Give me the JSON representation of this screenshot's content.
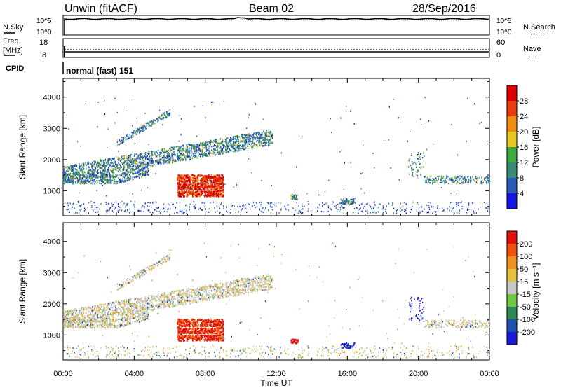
{
  "header": {
    "station": "Unwin (fitACF)",
    "beam": "Beam 02",
    "date": "28/Sep/2016"
  },
  "nsky_panel": {
    "left_label": "N.Sky",
    "left_ticks": [
      "10^5",
      "10^0"
    ],
    "right_ticks": [
      "10^5",
      "10^0"
    ],
    "right_label": "N.Search",
    "right_dots": "........"
  },
  "freq_panel": {
    "left_label_1": "Freq.",
    "left_label_2": "[MHz]",
    "left_ticks": [
      "18",
      "8"
    ],
    "right_ticks": [
      "60",
      "0"
    ],
    "right_label": "Nave",
    "right_dots": "...."
  },
  "cpid": {
    "label": "CPID",
    "value": "normal (fast) 151"
  },
  "x_axis": {
    "ticks": [
      "00:00",
      "04:00",
      "08:00",
      "12:00",
      "16:00",
      "20:00",
      "00:00"
    ],
    "label": "Time UT"
  },
  "chart_data": [
    {
      "type": "heatmap",
      "panel": "power",
      "ylabel": "Slant Range [km]",
      "y_ticks": [
        1000,
        2000,
        3000,
        4000
      ],
      "ylim": [
        200,
        4600
      ],
      "xlim_hours": [
        0,
        24
      ],
      "colorbar": {
        "label": "Power [dB]",
        "ticks": [
          "4",
          "8",
          "12",
          "16",
          "20",
          "24",
          "28"
        ],
        "colors": [
          "#1414e6",
          "#2a5ab8",
          "#3a8a7a",
          "#3fa83f",
          "#e8c820",
          "#f08c10",
          "#e83c0c",
          "#e00000"
        ]
      }
    },
    {
      "type": "heatmap",
      "panel": "velocity",
      "ylabel": "Slant Range [km]",
      "y_ticks": [
        1000,
        2000,
        3000,
        4000
      ],
      "ylim": [
        200,
        4600
      ],
      "xlim_hours": [
        0,
        24
      ],
      "colorbar": {
        "label": "Velocity [m s⁻¹]",
        "ticks": [
          "200",
          "100",
          "50",
          "15",
          "-15",
          "-50",
          "-100",
          "-200"
        ],
        "colors": [
          "#1a1ad8",
          "#2050b0",
          "#2e8a5a",
          "#70c840",
          "#c8c8c8",
          "#e8c040",
          "#f09020",
          "#f05010",
          "#e01010"
        ]
      }
    }
  ]
}
